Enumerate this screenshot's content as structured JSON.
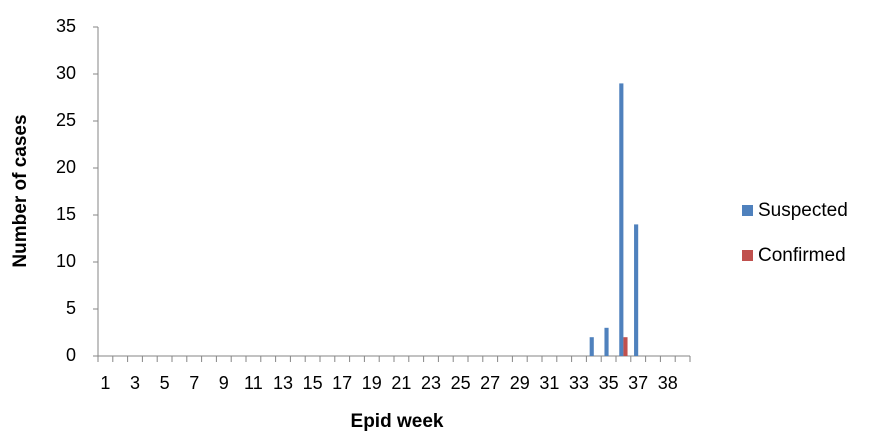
{
  "chart_data": {
    "type": "bar",
    "x_label": "Epid week",
    "y_label": "Number of cases",
    "categories": [
      "1",
      null,
      "3",
      null,
      "5",
      null,
      "7",
      null,
      "9",
      null,
      "11",
      null,
      "13",
      null,
      "15",
      null,
      "17",
      null,
      "19",
      null,
      "21",
      null,
      "23",
      null,
      "25",
      null,
      "27",
      null,
      "29",
      null,
      "31",
      null,
      "33",
      null,
      "35",
      null,
      "37",
      null,
      "38",
      null
    ],
    "series": [
      {
        "name": "Suspected",
        "color": "#4f81bd",
        "values": [
          0,
          0,
          0,
          0,
          0,
          0,
          0,
          0,
          0,
          0,
          0,
          0,
          0,
          0,
          0,
          0,
          0,
          0,
          0,
          0,
          0,
          0,
          0,
          0,
          0,
          0,
          0,
          0,
          0,
          0,
          0,
          0,
          0,
          2,
          3,
          29,
          14,
          0,
          0,
          0
        ]
      },
      {
        "name": "Confirmed",
        "color": "#c0504d",
        "values": [
          0,
          0,
          0,
          0,
          0,
          0,
          0,
          0,
          0,
          0,
          0,
          0,
          0,
          0,
          0,
          0,
          0,
          0,
          0,
          0,
          0,
          0,
          0,
          0,
          0,
          0,
          0,
          0,
          0,
          0,
          0,
          0,
          0,
          0,
          0,
          2,
          0,
          0,
          0,
          0
        ]
      }
    ],
    "ylim": [
      0,
      35
    ],
    "yticks": [
      0,
      5,
      10,
      15,
      20,
      25,
      30,
      35
    ],
    "grid": false,
    "legend": "right"
  }
}
